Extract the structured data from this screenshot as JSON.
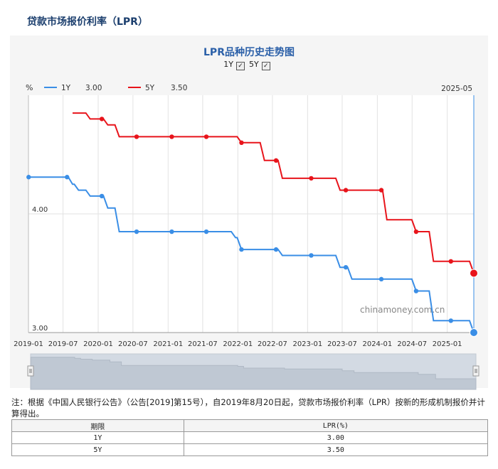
{
  "header": {
    "title": "贷款市场报价利率（LPR）"
  },
  "chart_data": {
    "type": "line",
    "title": "LPR品种历史走势图",
    "unit_label": "%",
    "series": [
      {
        "name": "1Y",
        "color": "#3a8ee6",
        "current": "3.00",
        "checked": true,
        "points": [
          [
            "2019-01-02",
            4.31
          ],
          [
            "2019-08-20",
            4.25
          ],
          [
            "2019-09-20",
            4.2
          ],
          [
            "2019-11-20",
            4.15
          ],
          [
            "2020-02-20",
            4.05
          ],
          [
            "2020-04-20",
            3.85
          ],
          [
            "2021-12-20",
            3.8
          ],
          [
            "2022-01-20",
            3.7
          ],
          [
            "2022-08-22",
            3.65
          ],
          [
            "2023-06-20",
            3.55
          ],
          [
            "2023-08-21",
            3.45
          ],
          [
            "2024-07-22",
            3.35
          ],
          [
            "2024-10-21",
            3.1
          ],
          [
            "2025-05-20",
            3.0
          ]
        ],
        "markers": [
          "2019-01-02",
          "2019-07-22",
          "2020-01-20",
          "2020-07-20",
          "2021-01-20",
          "2021-07-20",
          "2022-01-20",
          "2022-07-20",
          "2023-01-20",
          "2023-07-20",
          "2024-01-22",
          "2024-07-22",
          "2025-01-20"
        ]
      },
      {
        "name": "5Y",
        "color": "#e8141b",
        "current": "3.50",
        "checked": true,
        "points": [
          [
            "2019-08-20",
            4.85
          ],
          [
            "2019-09-20",
            4.85
          ],
          [
            "2019-11-20",
            4.8
          ],
          [
            "2020-02-20",
            4.75
          ],
          [
            "2020-04-20",
            4.65
          ],
          [
            "2022-01-20",
            4.6
          ],
          [
            "2022-05-20",
            4.45
          ],
          [
            "2022-08-22",
            4.3
          ],
          [
            "2023-06-20",
            4.2
          ],
          [
            "2024-02-20",
            3.95
          ],
          [
            "2024-07-22",
            3.85
          ],
          [
            "2024-10-21",
            3.6
          ],
          [
            "2025-05-20",
            3.5
          ]
        ],
        "markers": [
          "2020-01-20",
          "2020-07-20",
          "2021-01-20",
          "2021-07-20",
          "2022-01-20",
          "2022-07-20",
          "2023-01-20",
          "2023-07-20",
          "2024-01-22",
          "2024-07-22",
          "2025-01-20"
        ]
      }
    ],
    "x_range": [
      "2019-01-01",
      "2025-05-20"
    ],
    "x_ticks": [
      "2019-01",
      "2019-07",
      "2020-01",
      "2020-07",
      "2021-01",
      "2021-07",
      "2022-01",
      "2022-07",
      "2023-01",
      "2023-07",
      "2024-01",
      "2024-07",
      "2025-01"
    ],
    "y_range": [
      3.0,
      5.0
    ],
    "y_ticks": [
      "3.00",
      "4.00"
    ],
    "crosshair_label": "2025-05",
    "watermark": "chinamoney.com.cn",
    "grid": true
  },
  "note": "注：根据《中国人民银行公告》（公告[2019]第15号），自2019年8月20日起，贷款市场报价利率（LPR）按新的形成机制报价并计算得出。",
  "table": {
    "headers": [
      "期限",
      "LPR(%)"
    ],
    "rows": [
      [
        "1Y",
        "3.00"
      ],
      [
        "5Y",
        "3.50"
      ]
    ]
  }
}
